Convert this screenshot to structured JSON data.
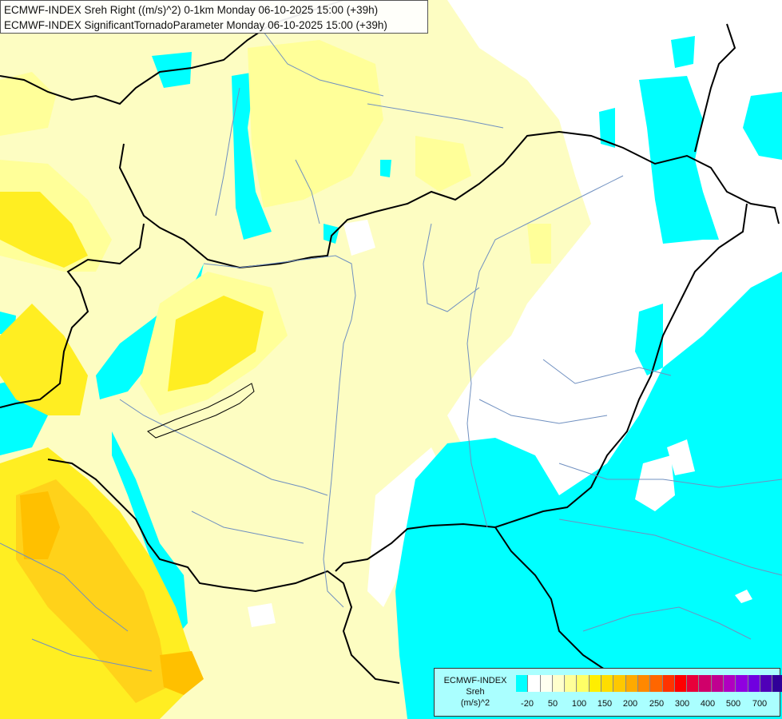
{
  "titles": {
    "line1": "ECMWF-INDEX Sreh Right ((m/s)^2) 0-1km Monday 06-10-2025 15:00 (+39h)",
    "line2": "ECMWF-INDEX SignificantTornadoParameter Monday 06-10-2025 15:00 (+39h)"
  },
  "legend": {
    "line1": "ECMWF-INDEX",
    "line2": "Sreh",
    "line3": "(m/s)^2",
    "colors": [
      "#00ffff",
      "#ffffff",
      "#fffff0",
      "#ffffcc",
      "#ffff99",
      "#ffff66",
      "#ffee00",
      "#ffdd00",
      "#ffc800",
      "#ffaa00",
      "#ff8800",
      "#ff6600",
      "#ff3300",
      "#ff0000",
      "#e8003a",
      "#d0006a",
      "#c00090",
      "#b000c0",
      "#9000e0",
      "#7000e0",
      "#5000b8",
      "#300098",
      "#100070"
    ],
    "ticks": [
      "-20",
      "50",
      "100",
      "150",
      "200",
      "250",
      "300",
      "400",
      "500",
      "700"
    ]
  },
  "colors": {
    "cyan": "#00ffff",
    "white": "#ffffff",
    "pale_yellow": "#fdfdc2",
    "light_yellow": "#ffff99",
    "yellow": "#ffee22",
    "gold": "#ffd21a",
    "orange": "#ffc000"
  }
}
